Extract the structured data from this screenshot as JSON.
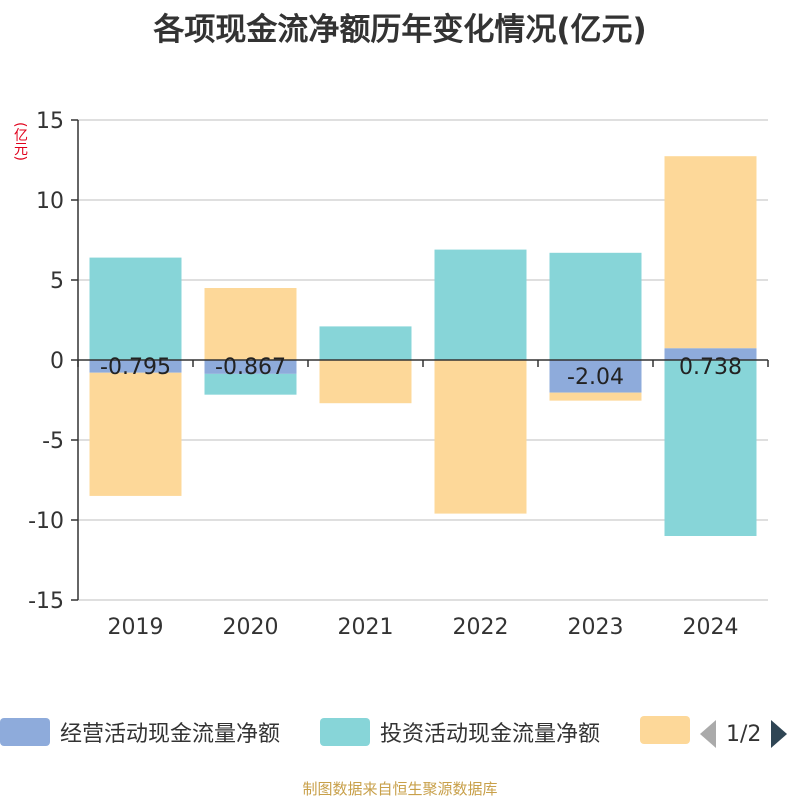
{
  "title": "各项现金流净额历年变化情况(亿元)",
  "y_unit": "(亿元)",
  "footer": "制图数据来自恒生聚源数据库",
  "legend": {
    "items": [
      {
        "label": "经营活动现金流量净额",
        "color": "#8eabdb"
      },
      {
        "label": "投资活动现金流量净额",
        "color": "#87d5d8"
      },
      {
        "label": "",
        "color": "#fdd899"
      }
    ],
    "page": "1/2"
  },
  "chart_data": {
    "type": "bar",
    "stacked": true,
    "categories": [
      "2019",
      "2020",
      "2021",
      "2022",
      "2023",
      "2024"
    ],
    "ylim": [
      -15,
      15
    ],
    "yticks": [
      15,
      10,
      5,
      0,
      -5,
      -10,
      -15
    ],
    "grid": true,
    "legend_position": "bottom",
    "series": [
      {
        "name": "经营活动现金流量净额",
        "color": "#8eabdb",
        "values": [
          -0.795,
          -0.867,
          0,
          0,
          -2.04,
          0.738
        ],
        "labels": [
          "-0.795",
          "-0.867",
          "",
          "",
          "-2.04",
          "0.738"
        ]
      },
      {
        "name": "投资活动现金流量净额",
        "color": "#87d5d8",
        "values": [
          6.4,
          -1.3,
          2.1,
          6.9,
          6.7,
          -11.0
        ]
      },
      {
        "color": "#fdd899",
        "values": [
          -7.7,
          4.5,
          -2.7,
          -9.6,
          -0.5,
          12.0
        ]
      }
    ]
  }
}
